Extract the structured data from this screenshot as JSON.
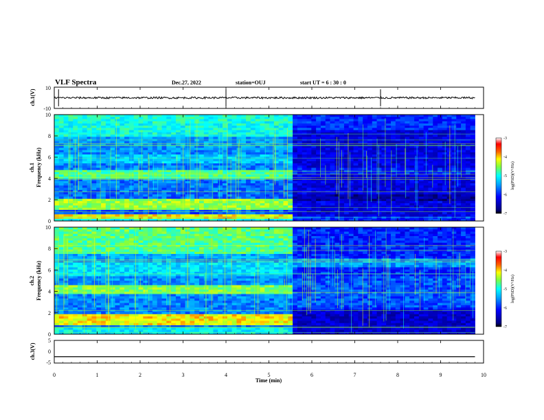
{
  "header": {
    "title": "VLF Spectra",
    "date": "Dec.27, 2022",
    "station": "station=OUJ",
    "start_ut": "start UT =  6 : 30 : 0"
  },
  "colors": {
    "colormap": [
      "#000080",
      "#0000ff",
      "#0080ff",
      "#00ffff",
      "#80ff80",
      "#ffff00",
      "#ff8000",
      "#ff0000",
      "#ffffff"
    ]
  },
  "chart_data": [
    {
      "id": "ch1-waveform",
      "type": "line",
      "ylabel": "ch.1(V)",
      "yticks": [
        "10",
        "-10"
      ],
      "ylim": [
        -10,
        10
      ],
      "xlim": [
        0,
        10
      ],
      "description_values": {
        "baseline": 0,
        "spike_times_min": [
          0.1,
          4.0,
          7.6
        ]
      }
    },
    {
      "id": "ch1-spectrogram",
      "type": "heatmap",
      "ylabel": "ch.1\nFrequency (kHz)",
      "ylabel_lines": [
        "ch.1",
        "Frequency (kHz)"
      ],
      "yticks": [
        "0",
        "2",
        "4",
        "6",
        "8",
        "10"
      ],
      "ylim": [
        0,
        10
      ],
      "xlim": [
        0,
        10
      ],
      "data_end_min": 9.8,
      "transition_min": 5.6,
      "colorbar": {
        "label": "log(PSD)(V²/Hz)",
        "ticks": [
          "-3",
          "-4",
          "-5",
          "-6",
          "-7"
        ],
        "range": [
          -7,
          -3
        ]
      }
    },
    {
      "id": "ch2-spectrogram",
      "type": "heatmap",
      "ylabel_lines": [
        "ch.2",
        "Frequency (kHz)"
      ],
      "yticks": [
        "0",
        "2",
        "4",
        "6",
        "8",
        "10"
      ],
      "ylim": [
        0,
        10
      ],
      "xlim": [
        0,
        10
      ],
      "data_end_min": 9.8,
      "transition_min": 5.6,
      "colorbar": {
        "label": "log(PSD)(V²/Hz)",
        "ticks": [
          "-3",
          "-4",
          "-5",
          "-6",
          "-7"
        ],
        "range": [
          -7,
          -3
        ]
      }
    },
    {
      "id": "ch3-waveform",
      "type": "line",
      "ylabel": "ch.3(V)",
      "yticks": [
        "5",
        "0",
        "-5"
      ],
      "ylim": [
        -5,
        5
      ],
      "xlim": [
        0,
        10
      ],
      "values": {
        "x": [
          0,
          9.8
        ],
        "y": [
          -2.2,
          -2.2
        ]
      }
    }
  ],
  "x_axis": {
    "label": "Time (min)",
    "ticks": [
      "0",
      "1",
      "2",
      "3",
      "4",
      "5",
      "6",
      "7",
      "8",
      "9",
      "10"
    ]
  }
}
